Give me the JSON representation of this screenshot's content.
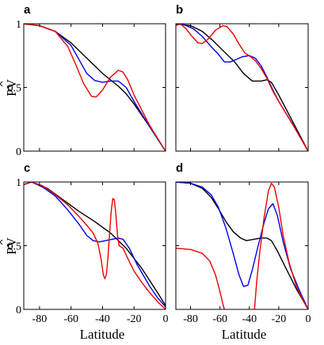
{
  "figure": {
    "ylabel": "PV",
    "xlabel": "Latitude"
  },
  "colors": {
    "black": "#000000",
    "blue": "#0000ee",
    "red": "#ee0000"
  },
  "chart_data": [
    {
      "panel": "a",
      "type": "line",
      "xlim": [
        -90,
        0
      ],
      "ylim": [
        0,
        1
      ],
      "x_ticks": [
        "-80",
        "-60",
        "-40",
        "-20",
        "0"
      ],
      "y_ticks": [
        "0",
        "0.5",
        "1"
      ],
      "series": [
        {
          "color": "black",
          "points": [
            [
              -90,
              1.0
            ],
            [
              -80,
              0.985
            ],
            [
              -70,
              0.94
            ],
            [
              -60,
              0.85
            ],
            [
              -50,
              0.73
            ],
            [
              -45,
              0.67
            ],
            [
              -40,
              0.61
            ],
            [
              -35,
              0.56
            ],
            [
              -30,
              0.51
            ],
            [
              -25,
              0.45
            ],
            [
              -20,
              0.37
            ],
            [
              -10,
              0.19
            ],
            [
              0,
              0.0
            ]
          ]
        },
        {
          "color": "blue",
          "points": [
            [
              -90,
              1.0
            ],
            [
              -80,
              0.985
            ],
            [
              -70,
              0.94
            ],
            [
              -60,
              0.83
            ],
            [
              -55,
              0.72
            ],
            [
              -50,
              0.61
            ],
            [
              -45,
              0.555
            ],
            [
              -40,
              0.54
            ],
            [
              -35,
              0.55
            ],
            [
              -30,
              0.55
            ],
            [
              -25,
              0.5
            ],
            [
              -20,
              0.39
            ],
            [
              -10,
              0.19
            ],
            [
              0,
              0.0
            ]
          ]
        },
        {
          "color": "red",
          "points": [
            [
              -90,
              1.0
            ],
            [
              -80,
              0.985
            ],
            [
              -70,
              0.94
            ],
            [
              -62,
              0.82
            ],
            [
              -57,
              0.68
            ],
            [
              -52,
              0.53
            ],
            [
              -47,
              0.43
            ],
            [
              -44,
              0.425
            ],
            [
              -40,
              0.48
            ],
            [
              -35,
              0.58
            ],
            [
              -30,
              0.635
            ],
            [
              -27,
              0.62
            ],
            [
              -24,
              0.56
            ],
            [
              -20,
              0.44
            ],
            [
              -10,
              0.2
            ],
            [
              0,
              0.0
            ]
          ]
        }
      ]
    },
    {
      "panel": "b",
      "type": "line",
      "xlim": [
        -90,
        0
      ],
      "ylim": [
        0,
        1
      ],
      "x_ticks": [
        "-80",
        "-60",
        "-40",
        "-20",
        "0"
      ],
      "y_ticks": [
        "0",
        "0.5",
        "1"
      ],
      "series": [
        {
          "color": "black",
          "points": [
            [
              -90,
              1.0
            ],
            [
              -80,
              0.985
            ],
            [
              -72,
              0.94
            ],
            [
              -65,
              0.87
            ],
            [
              -58,
              0.79
            ],
            [
              -50,
              0.7
            ],
            [
              -44,
              0.61
            ],
            [
              -38,
              0.55
            ],
            [
              -32,
              0.55
            ],
            [
              -28,
              0.56
            ],
            [
              -25,
              0.54
            ],
            [
              -20,
              0.44
            ],
            [
              -10,
              0.22
            ],
            [
              0,
              0.0
            ]
          ]
        },
        {
          "color": "blue",
          "points": [
            [
              -90,
              1.0
            ],
            [
              -84,
              0.99
            ],
            [
              -78,
              0.96
            ],
            [
              -72,
              0.9
            ],
            [
              -66,
              0.82
            ],
            [
              -61,
              0.76
            ],
            [
              -57,
              0.7
            ],
            [
              -53,
              0.7
            ],
            [
              -49,
              0.72
            ],
            [
              -45,
              0.74
            ],
            [
              -40,
              0.75
            ],
            [
              -36,
              0.73
            ],
            [
              -32,
              0.67
            ],
            [
              -28,
              0.58
            ],
            [
              -24,
              0.48
            ],
            [
              -20,
              0.39
            ],
            [
              -10,
              0.2
            ],
            [
              0,
              0.0
            ]
          ]
        },
        {
          "color": "red",
          "points": [
            [
              -90,
              0.985
            ],
            [
              -87,
              1.0
            ],
            [
              -83,
              0.96
            ],
            [
              -79,
              0.9
            ],
            [
              -75,
              0.85
            ],
            [
              -72,
              0.845
            ],
            [
              -68,
              0.88
            ],
            [
              -63,
              0.95
            ],
            [
              -58,
              0.985
            ],
            [
              -55,
              0.975
            ],
            [
              -51,
              0.92
            ],
            [
              -47,
              0.84
            ],
            [
              -43,
              0.77
            ],
            [
              -39,
              0.74
            ],
            [
              -36,
              0.71
            ],
            [
              -32,
              0.65
            ],
            [
              -28,
              0.57
            ],
            [
              -24,
              0.47
            ],
            [
              -20,
              0.39
            ],
            [
              -10,
              0.2
            ],
            [
              0,
              0.0
            ]
          ]
        }
      ]
    },
    {
      "panel": "c",
      "type": "line",
      "xlim": [
        -90,
        0
      ],
      "ylim": [
        0,
        1
      ],
      "x_ticks": [
        "-80",
        "-60",
        "-40",
        "-20",
        "0"
      ],
      "y_ticks": [
        "0",
        "0.5",
        "1"
      ],
      "series": [
        {
          "color": "black",
          "points": [
            [
              -90,
              0.98
            ],
            [
              -85,
              1.0
            ],
            [
              -75,
              0.95
            ],
            [
              -65,
              0.86
            ],
            [
              -55,
              0.77
            ],
            [
              -45,
              0.69
            ],
            [
              -35,
              0.6
            ],
            [
              -25,
              0.48
            ],
            [
              -15,
              0.32
            ],
            [
              -5,
              0.13
            ],
            [
              0,
              0.03
            ]
          ]
        },
        {
          "color": "blue",
          "points": [
            [
              -90,
              0.98
            ],
            [
              -85,
              1.0
            ],
            [
              -78,
              0.96
            ],
            [
              -70,
              0.89
            ],
            [
              -62,
              0.78
            ],
            [
              -55,
              0.67
            ],
            [
              -50,
              0.58
            ],
            [
              -46,
              0.54
            ],
            [
              -42,
              0.53
            ],
            [
              -38,
              0.54
            ],
            [
              -34,
              0.55
            ],
            [
              -30,
              0.56
            ],
            [
              -27,
              0.55
            ],
            [
              -23,
              0.48
            ],
            [
              -18,
              0.35
            ],
            [
              -10,
              0.18
            ],
            [
              -5,
              0.09
            ],
            [
              0,
              0.02
            ]
          ]
        },
        {
          "color": "red",
          "points": [
            [
              -90,
              0.98
            ],
            [
              -85,
              1.0
            ],
            [
              -78,
              0.97
            ],
            [
              -70,
              0.9
            ],
            [
              -62,
              0.82
            ],
            [
              -55,
              0.73
            ],
            [
              -50,
              0.66
            ],
            [
              -46,
              0.6
            ],
            [
              -43,
              0.52
            ],
            [
              -41,
              0.4
            ],
            [
              -39.5,
              0.27
            ],
            [
              -38.5,
              0.24
            ],
            [
              -37.5,
              0.28
            ],
            [
              -36.5,
              0.42
            ],
            [
              -35.5,
              0.6
            ],
            [
              -34.5,
              0.77
            ],
            [
              -33.5,
              0.87
            ],
            [
              -32.5,
              0.86
            ],
            [
              -31.5,
              0.74
            ],
            [
              -30.5,
              0.58
            ],
            [
              -29.5,
              0.5
            ],
            [
              -27,
              0.48
            ],
            [
              -24,
              0.4
            ],
            [
              -20,
              0.3
            ],
            [
              -15,
              0.21
            ],
            [
              -10,
              0.13
            ],
            [
              -5,
              0.06
            ],
            [
              0,
              0.0
            ]
          ]
        }
      ]
    },
    {
      "panel": "d",
      "type": "line",
      "xlim": [
        -90,
        0
      ],
      "ylim": [
        0,
        1
      ],
      "x_ticks": [
        "-80",
        "-60",
        "-40",
        "-20",
        "0"
      ],
      "y_ticks": [
        "0",
        "0.5",
        "1"
      ],
      "series": [
        {
          "color": "black",
          "points": [
            [
              -90,
              1.0
            ],
            [
              -80,
              0.99
            ],
            [
              -72,
              0.95
            ],
            [
              -66,
              0.88
            ],
            [
              -61,
              0.79
            ],
            [
              -56,
              0.69
            ],
            [
              -51,
              0.61
            ],
            [
              -46,
              0.56
            ],
            [
              -42,
              0.54
            ],
            [
              -37,
              0.55
            ],
            [
              -32,
              0.56
            ],
            [
              -28,
              0.56
            ],
            [
              -25,
              0.54
            ],
            [
              -21,
              0.46
            ],
            [
              -15,
              0.32
            ],
            [
              -8,
              0.16
            ],
            [
              0,
              0.0
            ]
          ]
        },
        {
          "color": "blue",
          "points": [
            [
              -90,
              1.0
            ],
            [
              -80,
              0.99
            ],
            [
              -72,
              0.96
            ],
            [
              -66,
              0.9
            ],
            [
              -61,
              0.8
            ],
            [
              -56,
              0.64
            ],
            [
              -51,
              0.44
            ],
            [
              -47,
              0.27
            ],
            [
              -44,
              0.18
            ],
            [
              -41,
              0.19
            ],
            [
              -38,
              0.31
            ],
            [
              -34,
              0.5
            ],
            [
              -30,
              0.68
            ],
            [
              -27,
              0.79
            ],
            [
              -24,
              0.83
            ],
            [
              -21,
              0.74
            ],
            [
              -17,
              0.53
            ],
            [
              -12,
              0.32
            ],
            [
              -6,
              0.15
            ],
            [
              0,
              0.0
            ]
          ]
        },
        {
          "color": "red",
          "points": [
            [
              -90,
              0.48
            ],
            [
              -80,
              0.47
            ],
            [
              -72,
              0.44
            ],
            [
              -67,
              0.38
            ],
            [
              -63,
              0.27
            ],
            [
              -60,
              0.14
            ],
            [
              -58,
              0.04
            ],
            [
              -57,
              0.0
            ]
          ]
        },
        {
          "color": "red",
          "points": [
            [
              -36.5,
              0.0
            ],
            [
              -35,
              0.22
            ],
            [
              -33,
              0.44
            ],
            [
              -30,
              0.72
            ],
            [
              -27,
              0.93
            ],
            [
              -25,
              0.99
            ],
            [
              -23,
              0.96
            ],
            [
              -20,
              0.8
            ],
            [
              -17,
              0.58
            ],
            [
              -13,
              0.37
            ],
            [
              -8,
              0.18
            ],
            [
              -3,
              0.06
            ],
            [
              0,
              0.0
            ]
          ]
        }
      ]
    }
  ]
}
